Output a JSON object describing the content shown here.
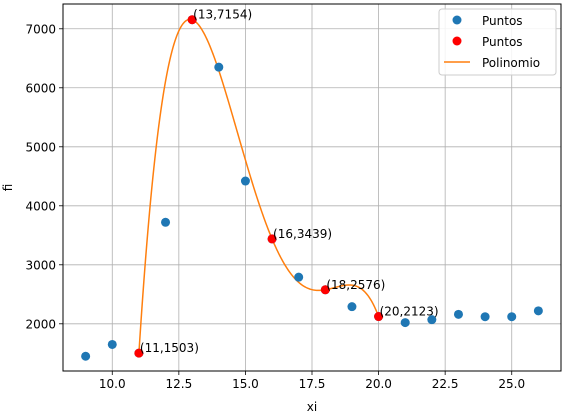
{
  "chart_data": {
    "type": "line",
    "xlabel": "xi",
    "ylabel": "fi",
    "xlim": [
      8.15,
      26.85
    ],
    "ylim": [
      1200,
      7420
    ],
    "xticks": [
      10.0,
      12.5,
      15.0,
      17.5,
      20.0,
      22.5,
      25.0
    ],
    "xtick_labels": [
      "10.0",
      "12.5",
      "15.0",
      "17.5",
      "20.0",
      "22.5",
      "25.0"
    ],
    "yticks": [
      2000,
      3000,
      4000,
      5000,
      6000,
      7000
    ],
    "ytick_labels": [
      "2000",
      "3000",
      "4000",
      "5000",
      "6000",
      "7000"
    ],
    "grid": true,
    "legend_position": "top-right",
    "series": [
      {
        "name": "Puntos",
        "kind": "scatter",
        "color": "#1f77b4",
        "x": [
          9,
          10,
          11,
          12,
          13,
          14,
          15,
          16,
          17,
          18,
          19,
          20,
          21,
          22,
          23,
          24,
          25,
          26
        ],
        "y": [
          1450,
          1650,
          1503,
          3720,
          7154,
          6350,
          4420,
          3439,
          2790,
          2576,
          2290,
          2123,
          2020,
          2070,
          2160,
          2120,
          2120,
          2220
        ]
      },
      {
        "name": "Puntos",
        "kind": "scatter",
        "color": "#ff0000",
        "x": [
          11,
          13,
          16,
          18,
          20
        ],
        "y": [
          1503,
          7154,
          3439,
          2576,
          2123
        ]
      },
      {
        "name": "Polinomio",
        "kind": "line",
        "color": "#ff7f0e",
        "x_range": [
          11,
          20
        ],
        "through_x": [
          11,
          13,
          16,
          18,
          20
        ],
        "through_y": [
          1503,
          7154,
          3439,
          2576,
          2123
        ]
      }
    ],
    "annotations": [
      {
        "text": "(11,1503)",
        "x": 11,
        "y": 1503
      },
      {
        "text": "(13,7154)",
        "x": 13,
        "y": 7154
      },
      {
        "text": "(16,3439)",
        "x": 16,
        "y": 3439
      },
      {
        "text": "(18,2576)",
        "x": 18,
        "y": 2576
      },
      {
        "text": "(20,2123)",
        "x": 20,
        "y": 2123
      }
    ]
  }
}
